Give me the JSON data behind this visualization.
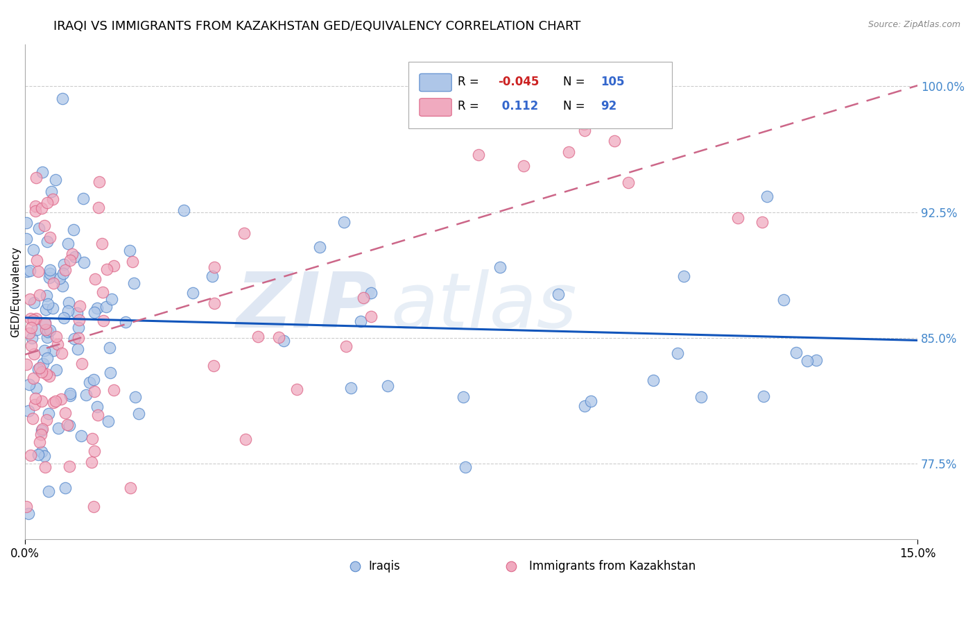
{
  "title": "IRAQI VS IMMIGRANTS FROM KAZAKHSTAN GED/EQUIVALENCY CORRELATION CHART",
  "source": "Source: ZipAtlas.com",
  "ylabel": "GED/Equivalency",
  "xlim": [
    0.0,
    15.0
  ],
  "ylim": [
    73.0,
    102.5
  ],
  "xticks": [
    0.0,
    15.0
  ],
  "xticklabels": [
    "0.0%",
    "15.0%"
  ],
  "yticks": [
    77.5,
    85.0,
    92.5,
    100.0
  ],
  "yticklabels": [
    "77.5%",
    "85.0%",
    "92.5%",
    "100.0%"
  ],
  "iraqi_fill": "#aec6e8",
  "iraqi_edge": "#5588cc",
  "kazakh_fill": "#f0aabf",
  "kazakh_edge": "#dd6688",
  "trend_iraqi_color": "#1155bb",
  "trend_kazakh_color": "#cc6688",
  "ytick_color": "#4488cc",
  "title_fontsize": 13,
  "label_fontsize": 11,
  "tick_fontsize": 12,
  "legend_R1": "-0.045",
  "legend_N1": "105",
  "legend_R2": "0.112",
  "legend_N2": "92",
  "seed": 77
}
